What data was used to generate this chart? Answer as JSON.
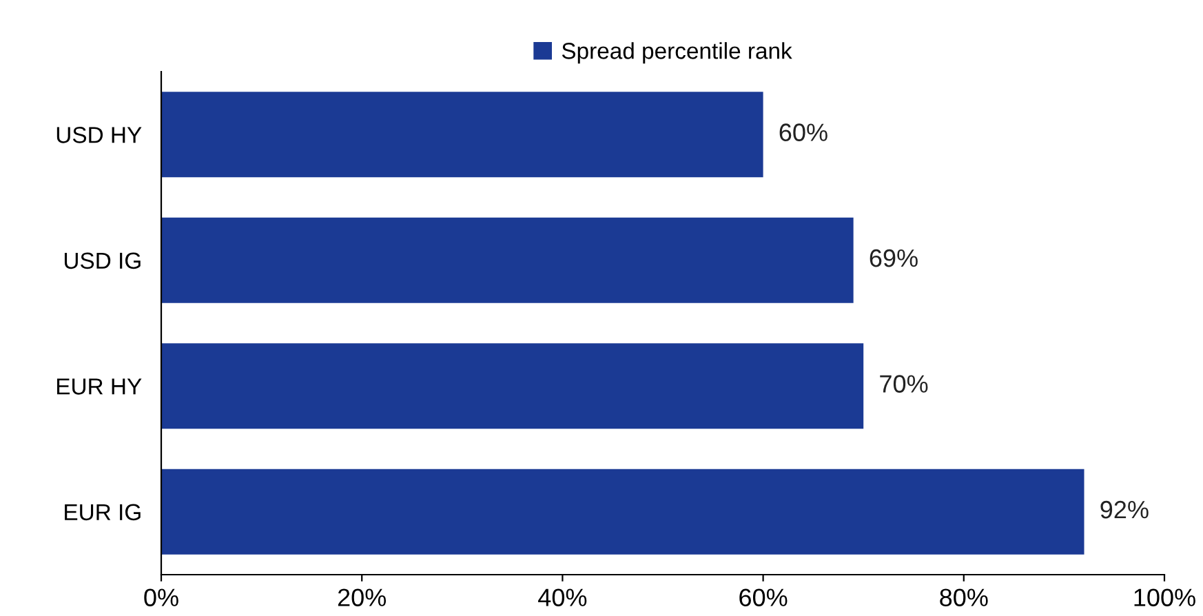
{
  "chart_data": {
    "type": "bar",
    "orientation": "horizontal",
    "categories": [
      "USD HY",
      "USD IG",
      "EUR HY",
      "EUR IG"
    ],
    "series": [
      {
        "name": "Spread percentile rank",
        "color": "#1b3a94",
        "values": [
          60,
          69,
          70,
          92
        ],
        "value_labels": [
          "60%",
          "69%",
          "70%",
          "92%"
        ]
      }
    ],
    "xlim": [
      0,
      100
    ],
    "xticks": [
      {
        "value": 0,
        "label": "0%"
      },
      {
        "value": 20,
        "label": "20%"
      },
      {
        "value": 40,
        "label": "40%"
      },
      {
        "value": 60,
        "label": "60%"
      },
      {
        "value": 80,
        "label": "80%"
      },
      {
        "value": 100,
        "label": "100%"
      }
    ],
    "grid": false,
    "legend": "top"
  }
}
